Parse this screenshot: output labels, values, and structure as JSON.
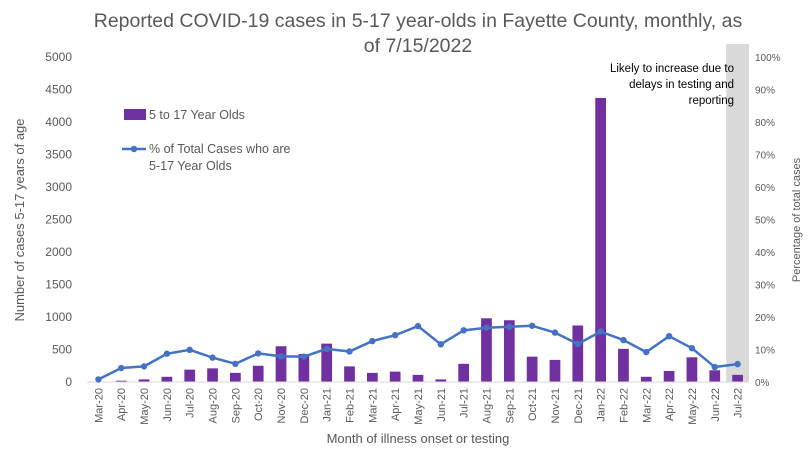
{
  "chart_data": {
    "type": "bar",
    "title": "Reported COVID-19 cases in 5-17 year-olds in Fayette County, monthly, as of 7/15/2022",
    "title_lines": [
      "Reported COVID-19 cases in 5-17 year-olds in Fayette County, monthly, as",
      "of 7/15/2022"
    ],
    "xlabel": "Month of illness onset or testing",
    "ylabel": "Number of cases 5-17 years of age",
    "y2label": "Percentage of total cases",
    "ylim": [
      0,
      5000
    ],
    "yticks": [
      "0",
      "500",
      "1000",
      "1500",
      "2000",
      "2500",
      "3000",
      "3500",
      "4000",
      "4500",
      "5000"
    ],
    "y2lim": [
      0,
      100
    ],
    "y2ticks": [
      "0%",
      "10%",
      "20%",
      "30%",
      "40%",
      "50%",
      "60%",
      "70%",
      "80%",
      "90%",
      "100%"
    ],
    "categories": [
      "Mar-20",
      "Apr-20",
      "May-20",
      "Jun-20",
      "Jul-20",
      "Aug-20",
      "Sep-20",
      "Oct-20",
      "Nov-20",
      "Dec-20",
      "Jan-21",
      "Feb-21",
      "Mar-21",
      "Apr-21",
      "May-21",
      "Jun-21",
      "Jul-21",
      "Aug-21",
      "Sep-21",
      "Oct-21",
      "Nov-21",
      "Dec-21",
      "Jan-22",
      "Feb-22",
      "Mar-22",
      "Apr-22",
      "May-22",
      "Jun-22",
      "Jul-22"
    ],
    "series": [
      {
        "name": "5 to 17 Year Olds",
        "kind": "bar",
        "axis": "left",
        "color": "#7030A0",
        "values": [
          5,
          20,
          40,
          80,
          190,
          210,
          140,
          250,
          550,
          430,
          590,
          240,
          140,
          160,
          110,
          40,
          280,
          980,
          950,
          390,
          340,
          870,
          4370,
          510,
          80,
          170,
          380,
          180,
          110
        ]
      },
      {
        "name": "% of Total Cases who are 5-17 Year Olds",
        "kind": "line",
        "axis": "right",
        "color": "#4472C4",
        "values": [
          0.8,
          4.3,
          4.8,
          8.7,
          9.9,
          7.5,
          5.6,
          8.8,
          7.9,
          7.8,
          10.2,
          9.4,
          12.6,
          14.4,
          17.2,
          11.6,
          15.9,
          16.7,
          17.0,
          17.3,
          15.2,
          11.7,
          15.5,
          12.9,
          9.2,
          14.1,
          10.4,
          4.6,
          5.5
        ]
      }
    ],
    "legend_position": "top-left",
    "grid": false,
    "annotation": {
      "lines": [
        "Likely to increase due to",
        "delays in testing and",
        "reporting"
      ],
      "shaded_category": "Jul-22",
      "shade_color": "#D9D9D9"
    }
  }
}
